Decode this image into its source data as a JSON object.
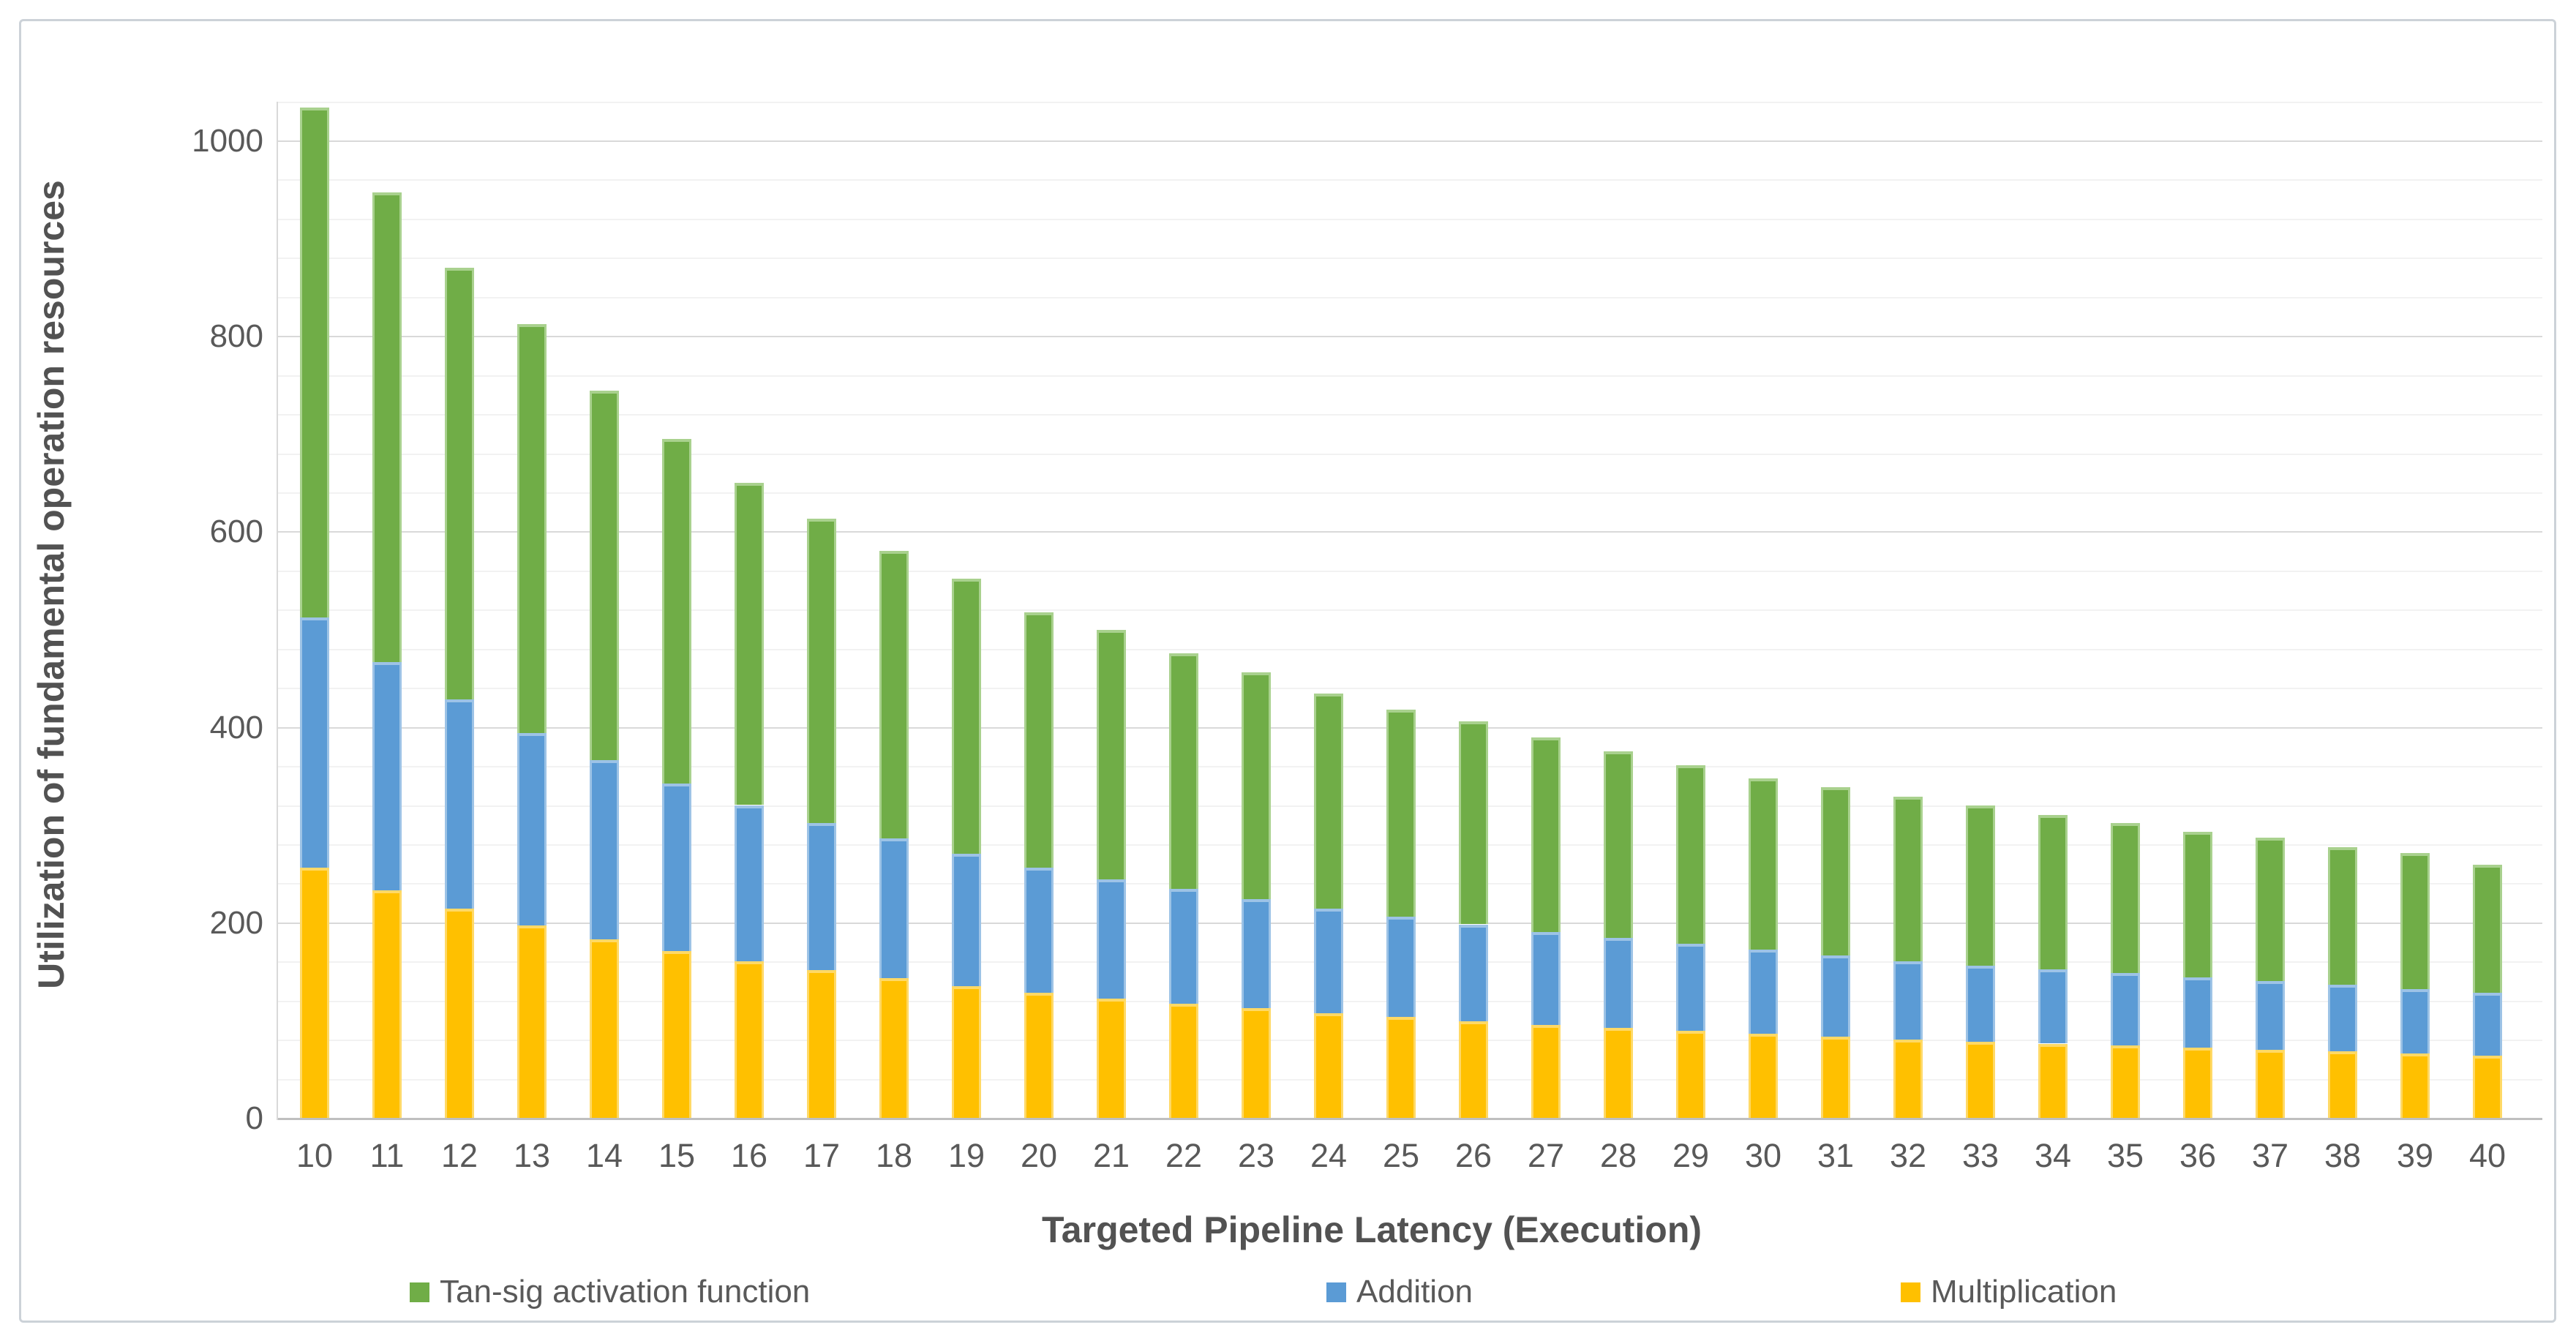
{
  "figure": {
    "y_axis_title": "Utilization of fundamental operation resources",
    "x_axis_title": "Targeted Pipeline Latency (Execution)"
  },
  "colors": {
    "tansig": "#70AD47",
    "tansig_light": "#A9D18E",
    "addition": "#5B9BD5",
    "addition_light": "#9DC3E6",
    "multiplication": "#FFC000",
    "multiplication_light": "#FFD966",
    "grid_major": "#D9D9D9",
    "grid_minor": "#F2F2F2",
    "axis_line": "#BFBFBF",
    "text": "#595959"
  },
  "chart_data": {
    "type": "bar",
    "stacked": true,
    "title": "",
    "xlabel": "Targeted Pipeline Latency (Execution)",
    "ylabel": "Utilization of fundamental operation resources",
    "categories": [
      10,
      11,
      12,
      13,
      14,
      15,
      16,
      17,
      18,
      19,
      20,
      21,
      22,
      23,
      24,
      25,
      26,
      27,
      28,
      29,
      30,
      31,
      32,
      33,
      34,
      35,
      36,
      37,
      38,
      39,
      40
    ],
    "series": [
      {
        "name": "Multiplication",
        "color": "#FFC000",
        "values": [
          256,
          233,
          214,
          197,
          183,
          171,
          160,
          151,
          143,
          135,
          128,
          122,
          117,
          112,
          107,
          103,
          99,
          95,
          92,
          89,
          86,
          83,
          80,
          78,
          76,
          74,
          72,
          70,
          68,
          66,
          64
        ]
      },
      {
        "name": "Addition",
        "color": "#5B9BD5",
        "values": [
          256,
          233,
          214,
          197,
          183,
          171,
          160,
          151,
          143,
          135,
          128,
          122,
          117,
          112,
          107,
          103,
          99,
          95,
          92,
          89,
          86,
          83,
          80,
          78,
          76,
          74,
          72,
          70,
          68,
          66,
          64
        ]
      },
      {
        "name": "Tan-sig activation function",
        "color": "#70AD47",
        "values": [
          522,
          481,
          442,
          418,
          378,
          353,
          330,
          311,
          294,
          282,
          261,
          255,
          241,
          232,
          220,
          212,
          208,
          199,
          191,
          183,
          175,
          172,
          169,
          164,
          158,
          154,
          149,
          147,
          141,
          139,
          131
        ]
      }
    ],
    "stack_totals": [
      1034,
      947,
      870,
      812,
      744,
      695,
      650,
      613,
      580,
      552,
      517,
      499,
      475,
      456,
      434,
      418,
      406,
      389,
      375,
      361,
      347,
      338,
      329,
      320,
      310,
      302,
      293,
      287,
      277,
      271,
      259
    ],
    "y_axis": {
      "min": 0,
      "max": 1040,
      "major_unit": 200,
      "minor_unit": 40,
      "tick_labels": [
        "0",
        "200",
        "400",
        "600",
        "800",
        "1000"
      ]
    },
    "legend": {
      "position": "bottom",
      "items": [
        "Tan-sig activation function",
        "Addition",
        "Multiplication"
      ]
    }
  }
}
